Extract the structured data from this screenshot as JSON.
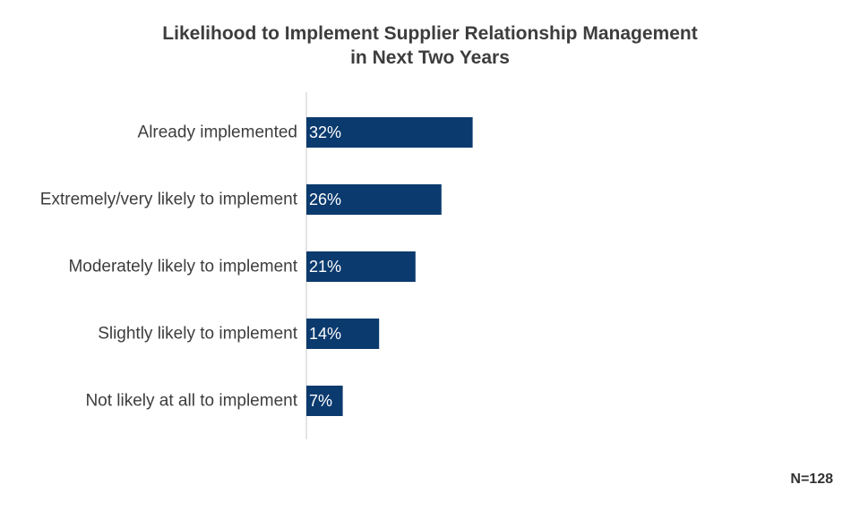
{
  "chart_data": {
    "type": "bar",
    "orientation": "horizontal",
    "title": "Likelihood to Implement Supplier Relationship Management",
    "subtitle": "in Next Two Years",
    "categories": [
      "Already implemented",
      "Extremely/very likely to implement",
      "Moderately likely to implement",
      "Slightly likely to implement",
      "Not likely at all to implement"
    ],
    "values": [
      32,
      26,
      21,
      14,
      7
    ],
    "value_labels": [
      "32%",
      "26%",
      "21%",
      "14%",
      "7%"
    ],
    "unit": "%",
    "xlim": [
      0,
      100
    ],
    "grid": false,
    "legend": "none",
    "bar_color": "#0b3a6e",
    "label_color": "#ffffff"
  },
  "footnote": "N=128"
}
